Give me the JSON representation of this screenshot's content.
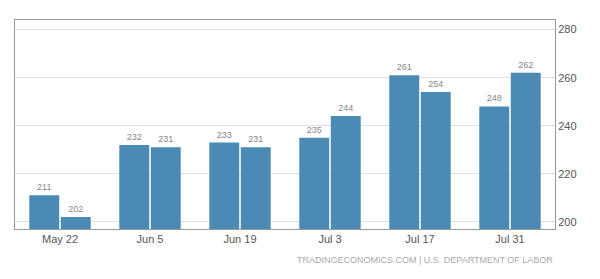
{
  "chart_data": {
    "type": "bar",
    "categories": [
      "May 22",
      "Jun 5",
      "Jun 19",
      "Jul 3",
      "Jul 17",
      "Jul 31"
    ],
    "series": [
      {
        "color": "#4a8ab5",
        "values": [
          211,
          232,
          233,
          235,
          261,
          248
        ]
      },
      {
        "color": "#4a8ab5",
        "values": [
          202,
          231,
          231,
          244,
          254,
          262
        ]
      }
    ],
    "ylim": [
      197,
      284
    ],
    "yticks": [
      200,
      220,
      240,
      260,
      280
    ],
    "grid": true,
    "data_labels": true,
    "annotations": [
      "TRADINGECONOMICS.COM | U.S. DEPARTMENT OF LABOR"
    ]
  }
}
